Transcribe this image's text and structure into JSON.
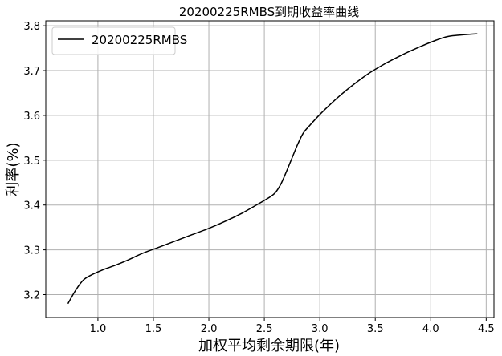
{
  "chart_data": {
    "type": "line",
    "title": "20200225RMBS到期收益率曲线",
    "xlabel": "加权平均剩余期限(年)",
    "ylabel": "利率(%)",
    "xlim": [
      0.53,
      4.57
    ],
    "ylim": [
      3.149,
      3.811
    ],
    "xticks": [
      1.0,
      1.5,
      2.0,
      2.5,
      3.0,
      3.5,
      4.0,
      4.5
    ],
    "yticks": [
      3.2,
      3.3,
      3.4,
      3.5,
      3.6,
      3.7,
      3.8
    ],
    "grid": true,
    "legend_position": "top-left",
    "series": [
      {
        "name": "20200225RMBS",
        "color": "#000000",
        "x": [
          0.73,
          0.8,
          0.87,
          0.95,
          1.05,
          1.15,
          1.25,
          1.4,
          1.55,
          1.7,
          1.85,
          2.0,
          2.15,
          2.3,
          2.45,
          2.55,
          2.6,
          2.65,
          2.7,
          2.75,
          2.8,
          2.85,
          2.9,
          3.0,
          3.1,
          3.2,
          3.3,
          3.45,
          3.6,
          3.75,
          3.9,
          4.05,
          4.15,
          4.25,
          4.35,
          4.42
        ],
        "y": [
          3.18,
          3.21,
          3.233,
          3.245,
          3.256,
          3.265,
          3.275,
          3.292,
          3.306,
          3.32,
          3.334,
          3.348,
          3.364,
          3.382,
          3.403,
          3.418,
          3.428,
          3.447,
          3.475,
          3.505,
          3.535,
          3.56,
          3.575,
          3.602,
          3.626,
          3.648,
          3.668,
          3.695,
          3.717,
          3.736,
          3.753,
          3.768,
          3.776,
          3.779,
          3.781,
          3.782
        ]
      }
    ]
  }
}
